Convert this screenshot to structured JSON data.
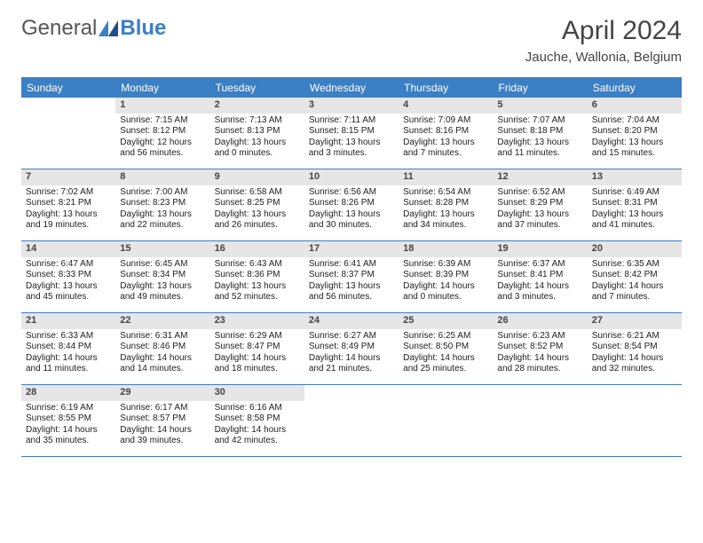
{
  "logo": {
    "text1": "General",
    "text2": "Blue"
  },
  "title": "April 2024",
  "location": "Jauche, Wallonia, Belgium",
  "colors": {
    "accent": "#3b7fc4",
    "daynum_bg": "#e6e6e6",
    "text": "#222222"
  },
  "dow": [
    "Sunday",
    "Monday",
    "Tuesday",
    "Wednesday",
    "Thursday",
    "Friday",
    "Saturday"
  ],
  "weeks": [
    [
      {
        "n": "",
        "sr": "",
        "ss": "",
        "dl1": "",
        "dl2": "",
        "empty": true
      },
      {
        "n": "1",
        "sr": "Sunrise: 7:15 AM",
        "ss": "Sunset: 8:12 PM",
        "dl1": "Daylight: 12 hours",
        "dl2": "and 56 minutes."
      },
      {
        "n": "2",
        "sr": "Sunrise: 7:13 AM",
        "ss": "Sunset: 8:13 PM",
        "dl1": "Daylight: 13 hours",
        "dl2": "and 0 minutes."
      },
      {
        "n": "3",
        "sr": "Sunrise: 7:11 AM",
        "ss": "Sunset: 8:15 PM",
        "dl1": "Daylight: 13 hours",
        "dl2": "and 3 minutes."
      },
      {
        "n": "4",
        "sr": "Sunrise: 7:09 AM",
        "ss": "Sunset: 8:16 PM",
        "dl1": "Daylight: 13 hours",
        "dl2": "and 7 minutes."
      },
      {
        "n": "5",
        "sr": "Sunrise: 7:07 AM",
        "ss": "Sunset: 8:18 PM",
        "dl1": "Daylight: 13 hours",
        "dl2": "and 11 minutes."
      },
      {
        "n": "6",
        "sr": "Sunrise: 7:04 AM",
        "ss": "Sunset: 8:20 PM",
        "dl1": "Daylight: 13 hours",
        "dl2": "and 15 minutes."
      }
    ],
    [
      {
        "n": "7",
        "sr": "Sunrise: 7:02 AM",
        "ss": "Sunset: 8:21 PM",
        "dl1": "Daylight: 13 hours",
        "dl2": "and 19 minutes."
      },
      {
        "n": "8",
        "sr": "Sunrise: 7:00 AM",
        "ss": "Sunset: 8:23 PM",
        "dl1": "Daylight: 13 hours",
        "dl2": "and 22 minutes."
      },
      {
        "n": "9",
        "sr": "Sunrise: 6:58 AM",
        "ss": "Sunset: 8:25 PM",
        "dl1": "Daylight: 13 hours",
        "dl2": "and 26 minutes."
      },
      {
        "n": "10",
        "sr": "Sunrise: 6:56 AM",
        "ss": "Sunset: 8:26 PM",
        "dl1": "Daylight: 13 hours",
        "dl2": "and 30 minutes."
      },
      {
        "n": "11",
        "sr": "Sunrise: 6:54 AM",
        "ss": "Sunset: 8:28 PM",
        "dl1": "Daylight: 13 hours",
        "dl2": "and 34 minutes."
      },
      {
        "n": "12",
        "sr": "Sunrise: 6:52 AM",
        "ss": "Sunset: 8:29 PM",
        "dl1": "Daylight: 13 hours",
        "dl2": "and 37 minutes."
      },
      {
        "n": "13",
        "sr": "Sunrise: 6:49 AM",
        "ss": "Sunset: 8:31 PM",
        "dl1": "Daylight: 13 hours",
        "dl2": "and 41 minutes."
      }
    ],
    [
      {
        "n": "14",
        "sr": "Sunrise: 6:47 AM",
        "ss": "Sunset: 8:33 PM",
        "dl1": "Daylight: 13 hours",
        "dl2": "and 45 minutes."
      },
      {
        "n": "15",
        "sr": "Sunrise: 6:45 AM",
        "ss": "Sunset: 8:34 PM",
        "dl1": "Daylight: 13 hours",
        "dl2": "and 49 minutes."
      },
      {
        "n": "16",
        "sr": "Sunrise: 6:43 AM",
        "ss": "Sunset: 8:36 PM",
        "dl1": "Daylight: 13 hours",
        "dl2": "and 52 minutes."
      },
      {
        "n": "17",
        "sr": "Sunrise: 6:41 AM",
        "ss": "Sunset: 8:37 PM",
        "dl1": "Daylight: 13 hours",
        "dl2": "and 56 minutes."
      },
      {
        "n": "18",
        "sr": "Sunrise: 6:39 AM",
        "ss": "Sunset: 8:39 PM",
        "dl1": "Daylight: 14 hours",
        "dl2": "and 0 minutes."
      },
      {
        "n": "19",
        "sr": "Sunrise: 6:37 AM",
        "ss": "Sunset: 8:41 PM",
        "dl1": "Daylight: 14 hours",
        "dl2": "and 3 minutes."
      },
      {
        "n": "20",
        "sr": "Sunrise: 6:35 AM",
        "ss": "Sunset: 8:42 PM",
        "dl1": "Daylight: 14 hours",
        "dl2": "and 7 minutes."
      }
    ],
    [
      {
        "n": "21",
        "sr": "Sunrise: 6:33 AM",
        "ss": "Sunset: 8:44 PM",
        "dl1": "Daylight: 14 hours",
        "dl2": "and 11 minutes."
      },
      {
        "n": "22",
        "sr": "Sunrise: 6:31 AM",
        "ss": "Sunset: 8:46 PM",
        "dl1": "Daylight: 14 hours",
        "dl2": "and 14 minutes."
      },
      {
        "n": "23",
        "sr": "Sunrise: 6:29 AM",
        "ss": "Sunset: 8:47 PM",
        "dl1": "Daylight: 14 hours",
        "dl2": "and 18 minutes."
      },
      {
        "n": "24",
        "sr": "Sunrise: 6:27 AM",
        "ss": "Sunset: 8:49 PM",
        "dl1": "Daylight: 14 hours",
        "dl2": "and 21 minutes."
      },
      {
        "n": "25",
        "sr": "Sunrise: 6:25 AM",
        "ss": "Sunset: 8:50 PM",
        "dl1": "Daylight: 14 hours",
        "dl2": "and 25 minutes."
      },
      {
        "n": "26",
        "sr": "Sunrise: 6:23 AM",
        "ss": "Sunset: 8:52 PM",
        "dl1": "Daylight: 14 hours",
        "dl2": "and 28 minutes."
      },
      {
        "n": "27",
        "sr": "Sunrise: 6:21 AM",
        "ss": "Sunset: 8:54 PM",
        "dl1": "Daylight: 14 hours",
        "dl2": "and 32 minutes."
      }
    ],
    [
      {
        "n": "28",
        "sr": "Sunrise: 6:19 AM",
        "ss": "Sunset: 8:55 PM",
        "dl1": "Daylight: 14 hours",
        "dl2": "and 35 minutes."
      },
      {
        "n": "29",
        "sr": "Sunrise: 6:17 AM",
        "ss": "Sunset: 8:57 PM",
        "dl1": "Daylight: 14 hours",
        "dl2": "and 39 minutes."
      },
      {
        "n": "30",
        "sr": "Sunrise: 6:16 AM",
        "ss": "Sunset: 8:58 PM",
        "dl1": "Daylight: 14 hours",
        "dl2": "and 42 minutes."
      },
      {
        "n": "",
        "sr": "",
        "ss": "",
        "dl1": "",
        "dl2": "",
        "empty": true
      },
      {
        "n": "",
        "sr": "",
        "ss": "",
        "dl1": "",
        "dl2": "",
        "empty": true
      },
      {
        "n": "",
        "sr": "",
        "ss": "",
        "dl1": "",
        "dl2": "",
        "empty": true
      },
      {
        "n": "",
        "sr": "",
        "ss": "",
        "dl1": "",
        "dl2": "",
        "empty": true
      }
    ]
  ]
}
